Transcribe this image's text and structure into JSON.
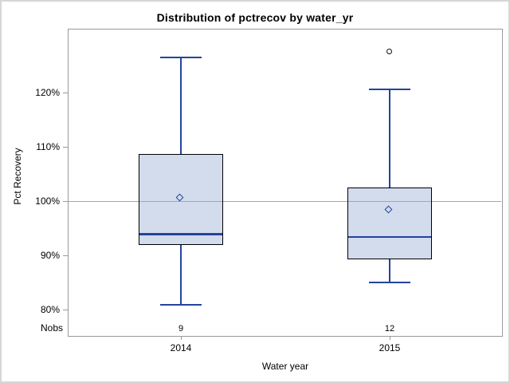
{
  "colors": {
    "box_fill": "#d3dcec",
    "box_border": "#000000",
    "line_blue": "#24449c",
    "outlier": "#111111",
    "reference_line": "#a5a5a5",
    "frame_border": "#9a9a9a",
    "tick_mark": "#9a9a9a",
    "figure_border": "#d6d6d6",
    "text": "#000000"
  },
  "chart_data": {
    "type": "boxplot",
    "title": "Distribution of pctrecov by water_yr",
    "xlabel": "Water year",
    "ylabel": "Pct Recovery",
    "nobs_label": "Nobs",
    "ylim": [
      75.2,
      131.8
    ],
    "grid": false,
    "legend": null,
    "reference_line_y": 100,
    "y_ticks": [
      {
        "value": 80,
        "label": "80%"
      },
      {
        "value": 90,
        "label": "90%"
      },
      {
        "value": 100,
        "label": "100%"
      },
      {
        "value": 110,
        "label": "110%"
      },
      {
        "value": 120,
        "label": "120%"
      }
    ],
    "categories": [
      "2014",
      "2015"
    ],
    "series": [
      {
        "category": "2014",
        "nobs": 9,
        "min": 81,
        "q1": 92,
        "median": 94,
        "q3": 108.7,
        "max": 126.5,
        "mean": 100.5,
        "outliers": []
      },
      {
        "category": "2015",
        "nobs": 12,
        "min": 85,
        "q1": 89.3,
        "median": 93.5,
        "q3": 102.5,
        "max": 120.7,
        "mean": 98.3,
        "outliers": [
          127.5
        ]
      }
    ]
  }
}
